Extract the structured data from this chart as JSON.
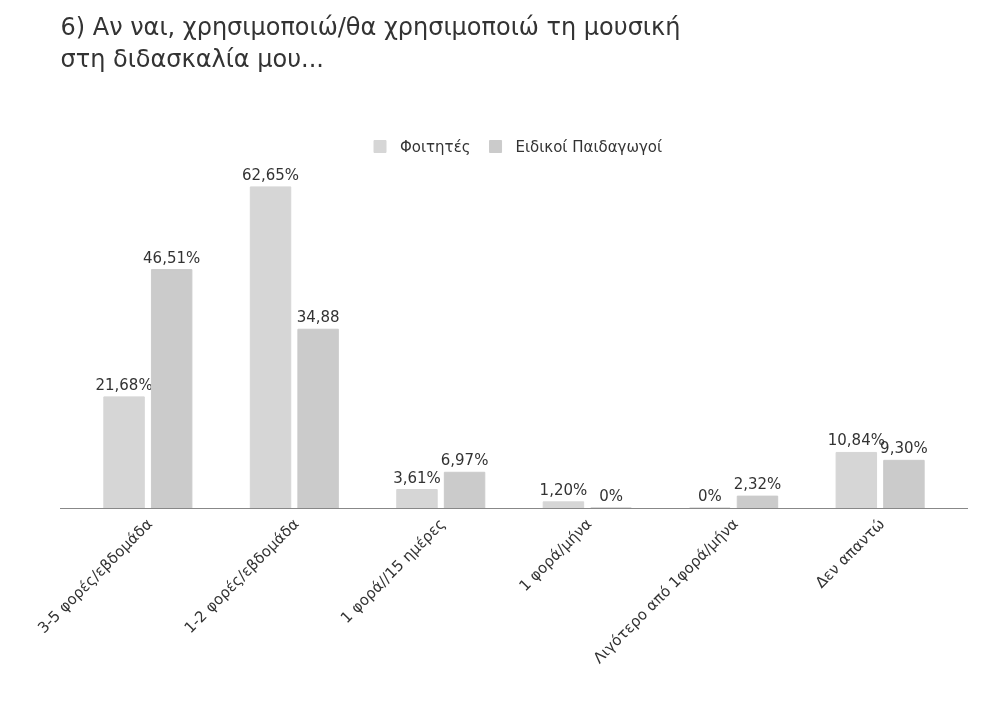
{
  "chart_data": {
    "type": "bar",
    "title": "6) Αν ναι, χρησιμοποιώ/θα χρησιμοποιώ τη μουσική\nστη διδασκαλία μου...",
    "categories": [
      "3-5 φορές/εβδομάδα",
      "1-2 φορές/εβδομάδα",
      "1 φορά//15 ημέρες",
      "1 φορά/μήνα",
      "Λιγότερο από 1φορά/μήνα",
      "Δεν απαντώ"
    ],
    "series": [
      {
        "name": "Φοιτητές",
        "color": "#d6d6d6",
        "values": [
          21.68,
          62.65,
          3.61,
          1.2,
          0,
          10.84
        ],
        "value_labels": [
          "21,68%",
          "62,65%",
          "3,61%",
          "1,20%",
          "0%",
          "10,84%"
        ]
      },
      {
        "name": "Ειδικοί Παιδαγωγοί",
        "color": "#cbcbcb",
        "values": [
          46.51,
          34.88,
          6.97,
          0,
          2.32,
          9.3
        ],
        "value_labels": [
          "46,51%",
          "34,88",
          "6,97%",
          "0%",
          "2,32%",
          "9,30%"
        ]
      }
    ],
    "legend": "top"
  }
}
